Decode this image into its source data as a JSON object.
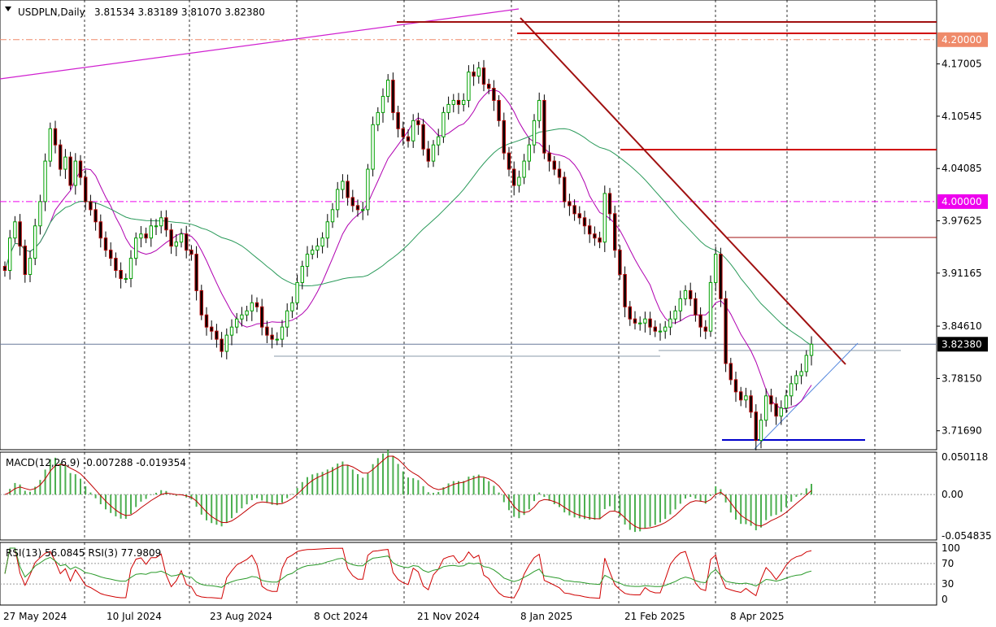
{
  "header": {
    "symbol": "USDPLN,Daily",
    "ohlc": "3.81534 3.83189 3.81070 3.82380"
  },
  "colors": {
    "bull": "#00a000",
    "bear": "#b40000",
    "candle_body_up": "#ffffff",
    "candle_body_down": "#000000",
    "ma_short": "#b000b0",
    "ma_long": "#2a9a5a",
    "trend_red": "#a01010",
    "level_red": "#d00000",
    "magenta_line": "#d020d0",
    "macd_signal": "#c00000",
    "macd_hist": "#4caf50",
    "rsi13": "#2a9a2a",
    "rsi3": "#d00000",
    "support_blue": "#0000cc",
    "tag_orange": "#ef8a6a",
    "tag_magenta": "#ee00ee",
    "tag_black": "#000000"
  },
  "chart_data": [
    {
      "type": "candlestick",
      "title": "USDPLN,Daily",
      "ohlc_last": {
        "open": 3.81534,
        "high": 3.83189,
        "low": 3.8107,
        "close": 3.8238
      },
      "y_ticks": [
        "4.17005",
        "4.10545",
        "4.04085",
        "3.97625",
        "3.91165",
        "3.84610",
        "3.78150",
        "3.71690"
      ],
      "ylim": [
        3.6935,
        4.249
      ],
      "x_ticks": [
        "27 May 2024",
        "10 Jul 2024",
        "23 Aug 2024",
        "8 Oct 2024",
        "21 Nov 2024",
        "8 Jan 2025",
        "21 Feb 2025",
        "8 Apr 2025"
      ],
      "price_tags": [
        {
          "label": "4.20000",
          "value": 4.2,
          "color_key": "tag_orange"
        },
        {
          "label": "4.00000",
          "value": 4.0,
          "color_key": "tag_magenta"
        },
        {
          "label": "3.82380",
          "value": 3.8238,
          "color_key": "tag_black"
        }
      ],
      "horizontal_levels": [
        {
          "name": "dashed-4.20",
          "value": 4.2,
          "style": "dashdot",
          "color_key": "tag_orange"
        },
        {
          "name": "dashed-4.00",
          "value": 4.0,
          "style": "dashdot",
          "color_key": "tag_magenta"
        },
        {
          "name": "current-price",
          "value": 3.8238,
          "style": "solid-thin"
        }
      ],
      "closes": [
        3.915,
        3.955,
        3.975,
        3.945,
        3.91,
        3.93,
        3.97,
        4.0,
        4.05,
        4.09,
        4.07,
        4.04,
        4.055,
        4.02,
        4.05,
        4.03,
        4.0,
        3.99,
        3.975,
        3.955,
        3.94,
        3.93,
        3.915,
        3.905,
        3.905,
        3.93,
        3.955,
        3.96,
        3.955,
        3.97,
        3.97,
        3.98,
        3.965,
        3.945,
        3.95,
        3.96,
        3.94,
        3.935,
        3.89,
        3.86,
        3.845,
        3.84,
        3.83,
        3.815,
        3.835,
        3.845,
        3.855,
        3.86,
        3.865,
        3.875,
        3.87,
        3.845,
        3.835,
        3.83,
        3.83,
        3.845,
        3.865,
        3.875,
        3.9,
        3.92,
        3.935,
        3.94,
        3.945,
        3.955,
        3.975,
        3.99,
        4.015,
        4.025,
        4.005,
        3.995,
        3.99,
        3.99,
        4.04,
        4.095,
        4.11,
        4.13,
        4.15,
        4.11,
        4.09,
        4.08,
        4.075,
        4.1,
        4.095,
        4.065,
        4.05,
        4.07,
        4.08,
        4.11,
        4.12,
        4.125,
        4.12,
        4.125,
        4.16,
        4.155,
        4.165,
        4.145,
        4.14,
        4.125,
        4.1,
        4.06,
        4.04,
        4.02,
        4.03,
        4.05,
        4.07,
        4.1,
        4.125,
        4.06,
        4.05,
        4.04,
        4.03,
        4.0,
        3.995,
        3.985,
        3.98,
        3.97,
        3.96,
        3.955,
        3.95,
        4.01,
        3.985,
        3.94,
        3.91,
        3.87,
        3.855,
        3.85,
        3.85,
        3.855,
        3.845,
        3.84,
        3.84,
        3.845,
        3.855,
        3.865,
        3.88,
        3.89,
        3.88,
        3.86,
        3.845,
        3.84,
        3.9,
        3.935,
        3.88,
        3.8,
        3.78,
        3.765,
        3.755,
        3.76,
        3.74,
        3.705,
        3.73,
        3.76,
        3.75,
        3.735,
        3.745,
        3.76,
        3.775,
        3.785,
        3.79,
        3.81,
        3.8238
      ]
    },
    {
      "type": "macd",
      "label": "MACD(12,26,9) -0.007288 -0.019354",
      "macd_value": -0.007288,
      "signal_value": -0.019354,
      "y_ticks": [
        "0.050118",
        "0.00",
        "-0.054835"
      ],
      "ylim": [
        -0.0605,
        0.0565
      ]
    },
    {
      "type": "rsi",
      "label": "RSI(13) 56.0845  RSI(3) 77.9809",
      "rsi13_value": 56.0845,
      "rsi3_value": 77.9809,
      "y_ticks": [
        "100",
        "70",
        "30",
        "0"
      ],
      "levels": [
        70,
        30
      ],
      "ylim": [
        0,
        100
      ]
    }
  ]
}
